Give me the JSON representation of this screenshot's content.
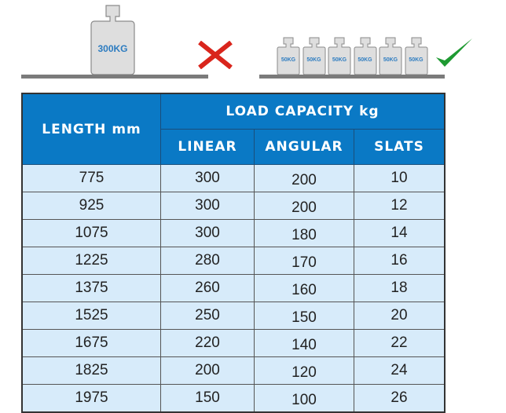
{
  "illustration": {
    "wrong": {
      "weight_label": "300KG",
      "mark": "cross-icon",
      "mark_color": "#d9251c"
    },
    "right": {
      "weight_labels": [
        "50KG",
        "50KG",
        "50KG",
        "50KG",
        "50KG",
        "50KG"
      ],
      "mark": "check-icon",
      "mark_color": "#1f9a32"
    }
  },
  "table": {
    "length_header": "LENGTH mm",
    "capacity_header": "LOAD CAPACITY kg",
    "sub_headers": [
      "LINEAR",
      "ANGULAR",
      "SLATS"
    ],
    "header_color": "#0a79c5",
    "row_color": "#d7ebfa",
    "rows": [
      [
        "775",
        "300",
        "200",
        "10"
      ],
      [
        "925",
        "300",
        "200",
        "12"
      ],
      [
        "1075",
        "300",
        "180",
        "14"
      ],
      [
        "1225",
        "280",
        "170",
        "16"
      ],
      [
        "1375",
        "260",
        "160",
        "18"
      ],
      [
        "1525",
        "250",
        "150",
        "20"
      ],
      [
        "1675",
        "220",
        "140",
        "22"
      ],
      [
        "1825",
        "200",
        "120",
        "24"
      ],
      [
        "1975",
        "150",
        "100",
        "26"
      ]
    ]
  }
}
